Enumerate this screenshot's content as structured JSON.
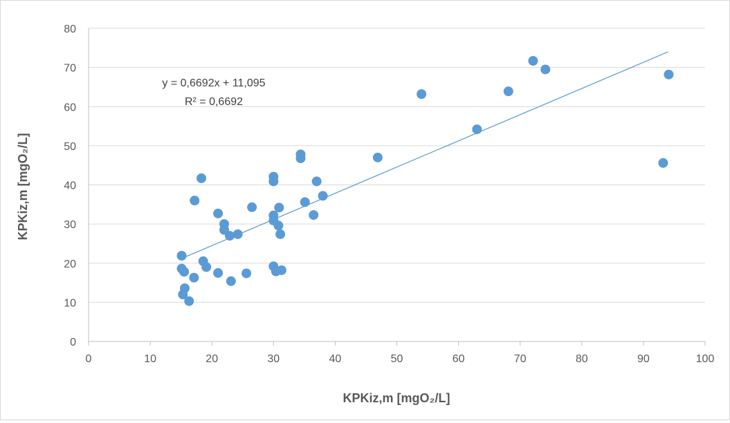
{
  "chart_data": {
    "type": "scatter",
    "xlabel": "KPKiz,m [mgO₂/L]",
    "ylabel": "KPKiz,m [mgO₂/L]",
    "xlim": [
      0,
      100
    ],
    "ylim": [
      0,
      80
    ],
    "x_ticks": [
      "0",
      "10",
      "20",
      "30",
      "40",
      "50",
      "60",
      "70",
      "80",
      "90",
      "100"
    ],
    "y_ticks": [
      "0",
      "10",
      "20",
      "30",
      "40",
      "50",
      "60",
      "70",
      "80"
    ],
    "grid": "horizontal",
    "marker_color": "#5b9bd5",
    "trendline_color": "#5b9bd5",
    "trendline": {
      "slope": 0.6692,
      "intercept": 11.095,
      "x_range": [
        15,
        94
      ],
      "equation": "y = 0,6692x + 11,095",
      "r_squared": "R² = 0,6692"
    },
    "points": [
      {
        "x": 15.1,
        "y": 21.9
      },
      {
        "x": 15.1,
        "y": 18.6
      },
      {
        "x": 15.5,
        "y": 17.8
      },
      {
        "x": 15.3,
        "y": 12.0
      },
      {
        "x": 15.6,
        "y": 13.6
      },
      {
        "x": 16.3,
        "y": 10.3
      },
      {
        "x": 17.1,
        "y": 16.3
      },
      {
        "x": 17.2,
        "y": 36.0
      },
      {
        "x": 18.3,
        "y": 41.7
      },
      {
        "x": 18.6,
        "y": 20.5
      },
      {
        "x": 19.1,
        "y": 19.0
      },
      {
        "x": 21.0,
        "y": 32.7
      },
      {
        "x": 21.0,
        "y": 17.5
      },
      {
        "x": 22.0,
        "y": 30.0
      },
      {
        "x": 22.0,
        "y": 28.5
      },
      {
        "x": 22.9,
        "y": 27.0
      },
      {
        "x": 23.1,
        "y": 15.4
      },
      {
        "x": 24.2,
        "y": 27.4
      },
      {
        "x": 25.6,
        "y": 17.4
      },
      {
        "x": 26.5,
        "y": 34.3
      },
      {
        "x": 30.0,
        "y": 42.1
      },
      {
        "x": 30.0,
        "y": 40.9
      },
      {
        "x": 30.0,
        "y": 32.2
      },
      {
        "x": 30.0,
        "y": 30.9
      },
      {
        "x": 30.0,
        "y": 19.2
      },
      {
        "x": 30.4,
        "y": 17.9
      },
      {
        "x": 30.8,
        "y": 29.6
      },
      {
        "x": 30.9,
        "y": 34.2
      },
      {
        "x": 31.1,
        "y": 27.4
      },
      {
        "x": 31.3,
        "y": 18.2
      },
      {
        "x": 34.4,
        "y": 47.8
      },
      {
        "x": 34.4,
        "y": 46.8
      },
      {
        "x": 35.1,
        "y": 35.6
      },
      {
        "x": 36.5,
        "y": 32.3
      },
      {
        "x": 37.0,
        "y": 40.9
      },
      {
        "x": 38.0,
        "y": 37.2
      },
      {
        "x": 46.9,
        "y": 47.0
      },
      {
        "x": 54.0,
        "y": 63.2
      },
      {
        "x": 63.0,
        "y": 54.2
      },
      {
        "x": 68.1,
        "y": 63.9
      },
      {
        "x": 72.1,
        "y": 71.7
      },
      {
        "x": 74.1,
        "y": 69.5
      },
      {
        "x": 93.2,
        "y": 45.6
      },
      {
        "x": 94.1,
        "y": 68.2
      }
    ]
  }
}
